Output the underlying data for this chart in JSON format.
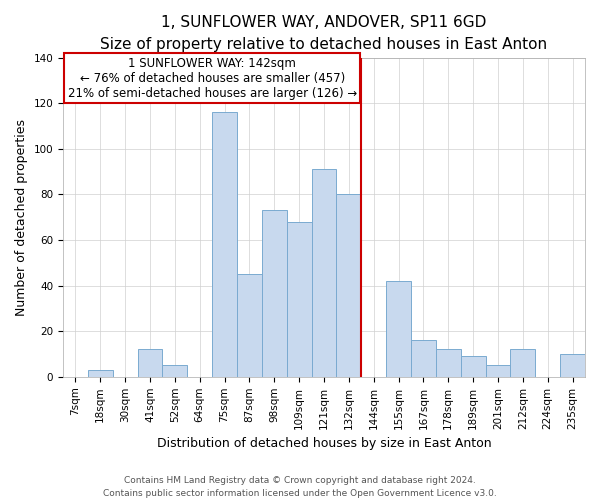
{
  "title": "1, SUNFLOWER WAY, ANDOVER, SP11 6GD",
  "subtitle": "Size of property relative to detached houses in East Anton",
  "xlabel": "Distribution of detached houses by size in East Anton",
  "ylabel": "Number of detached properties",
  "categories": [
    "7sqm",
    "18sqm",
    "30sqm",
    "41sqm",
    "52sqm",
    "64sqm",
    "75sqm",
    "87sqm",
    "98sqm",
    "109sqm",
    "121sqm",
    "132sqm",
    "144sqm",
    "155sqm",
    "167sqm",
    "178sqm",
    "189sqm",
    "201sqm",
    "212sqm",
    "224sqm",
    "235sqm"
  ],
  "values": [
    0,
    3,
    0,
    12,
    5,
    0,
    116,
    45,
    73,
    68,
    91,
    80,
    0,
    42,
    16,
    12,
    9,
    5,
    12,
    0,
    10
  ],
  "bar_color": "#c8d9ee",
  "bar_edge_color": "#7aaad0",
  "marker_line_color": "#cc0000",
  "annotation_title": "1 SUNFLOWER WAY: 142sqm",
  "annotation_line1": "← 76% of detached houses are smaller (457)",
  "annotation_line2": "21% of semi-detached houses are larger (126) →",
  "annotation_box_color": "#ffffff",
  "annotation_box_edge": "#cc0000",
  "ylim": [
    0,
    140
  ],
  "yticks": [
    0,
    20,
    40,
    60,
    80,
    100,
    120,
    140
  ],
  "footer1": "Contains HM Land Registry data © Crown copyright and database right 2024.",
  "footer2": "Contains public sector information licensed under the Open Government Licence v3.0.",
  "title_fontsize": 11,
  "subtitle_fontsize": 9.5,
  "axis_label_fontsize": 9,
  "tick_fontsize": 7.5,
  "annotation_fontsize": 8.5,
  "footer_fontsize": 6.5,
  "grid_color": "#d0d0d0"
}
